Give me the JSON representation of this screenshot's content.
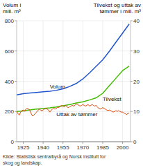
{
  "chart_data": {
    "type": "line",
    "y_label": "Volum i\nmill. m³",
    "y2_label": "Tilvekst og uttak av\ntømmer i mill. m³",
    "source": "Kilde: Statistisk sentralbyrå og Norsk institutt for\nskog og landskap.",
    "xlim": [
      1920,
      2006
    ],
    "xticks": [
      1925,
      1940,
      1955,
      1970,
      1985,
      2000
    ],
    "ylim": [
      0,
      800
    ],
    "yticks": [
      0,
      200,
      400,
      600,
      800
    ],
    "y2lim": [
      0,
      40
    ],
    "y2ticks": [
      0,
      10,
      20,
      30,
      40
    ],
    "grid": true,
    "series": [
      {
        "name": "Volum",
        "color": "#2255cc",
        "x": [
          1920,
          1925,
          1930,
          1935,
          1940,
          1945,
          1950,
          1955,
          1960,
          1965,
          1970,
          1975,
          1980,
          1985,
          1990,
          1995,
          2000,
          2005
        ],
        "values": [
          310,
          318,
          322,
          326,
          330,
          334,
          340,
          350,
          365,
          385,
          415,
          455,
          498,
          542,
          598,
          658,
          718,
          778
        ]
      },
      {
        "name": "Tilvekst",
        "color": "#44bb00",
        "axis": "y2",
        "x": [
          1920,
          1925,
          1930,
          1935,
          1940,
          1945,
          1950,
          1955,
          1960,
          1965,
          1970,
          1975,
          1980,
          1985,
          1990,
          1995,
          2000,
          2005
        ],
        "values": [
          10.0,
          10.2,
          10.5,
          10.8,
          11.0,
          11.2,
          11.5,
          11.9,
          12.3,
          12.8,
          13.2,
          13.8,
          14.5,
          16.0,
          18.5,
          21.0,
          23.5,
          25.0
        ]
      },
      {
        "name": "Uttak av tømmer",
        "color": "#dd4400",
        "axis": "y2",
        "x": [
          1920,
          1921,
          1922,
          1923,
          1924,
          1925,
          1926,
          1927,
          1928,
          1929,
          1930,
          1931,
          1932,
          1933,
          1934,
          1935,
          1936,
          1937,
          1938,
          1939,
          1940,
          1941,
          1942,
          1943,
          1944,
          1945,
          1946,
          1947,
          1948,
          1949,
          1950,
          1951,
          1952,
          1953,
          1954,
          1955,
          1956,
          1957,
          1958,
          1959,
          1960,
          1961,
          1962,
          1963,
          1964,
          1965,
          1966,
          1967,
          1968,
          1969,
          1970,
          1971,
          1972,
          1973,
          1974,
          1975,
          1976,
          1977,
          1978,
          1979,
          1980,
          1981,
          1982,
          1983,
          1984,
          1985,
          1986,
          1987,
          1988,
          1989,
          1990,
          1991,
          1992,
          1993,
          1994,
          1995,
          1996,
          1997,
          1998,
          1999,
          2000,
          2001,
          2002,
          2003,
          2004,
          2005
        ],
        "values": [
          10.0,
          9.3,
          8.8,
          9.8,
          10.3,
          10.5,
          10.0,
          10.8,
          11.0,
          10.8,
          10.3,
          9.3,
          8.5,
          8.8,
          9.3,
          9.8,
          10.3,
          10.8,
          10.5,
          10.3,
          10.5,
          10.8,
          11.0,
          10.8,
          10.5,
          9.8,
          10.3,
          10.8,
          11.0,
          10.8,
          11.0,
          11.5,
          11.3,
          11.8,
          12.0,
          11.8,
          11.5,
          12.0,
          11.5,
          11.3,
          11.5,
          11.8,
          12.0,
          11.8,
          12.0,
          12.5,
          12.3,
          12.0,
          11.8,
          12.0,
          12.3,
          12.0,
          11.8,
          12.0,
          12.3,
          11.8,
          12.0,
          12.3,
          12.0,
          11.8,
          12.0,
          11.5,
          11.0,
          10.8,
          11.0,
          11.3,
          11.0,
          10.8,
          10.5,
          10.3,
          10.5,
          10.3,
          10.0,
          9.8,
          10.0,
          10.3,
          10.0,
          10.3,
          10.0,
          9.8,
          9.8,
          9.5,
          9.3,
          9.0,
          9.3,
          9.5
        ]
      }
    ]
  }
}
